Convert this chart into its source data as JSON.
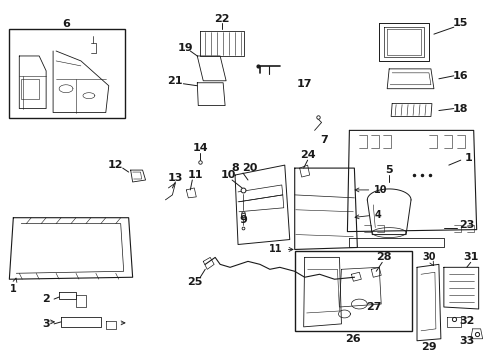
{
  "bg_color": "#ffffff",
  "line_color": "#1a1a1a",
  "fig_width": 4.89,
  "fig_height": 3.6,
  "dpi": 100,
  "gray_fill": "#d8d8d8",
  "light_gray": "#eeeeee"
}
